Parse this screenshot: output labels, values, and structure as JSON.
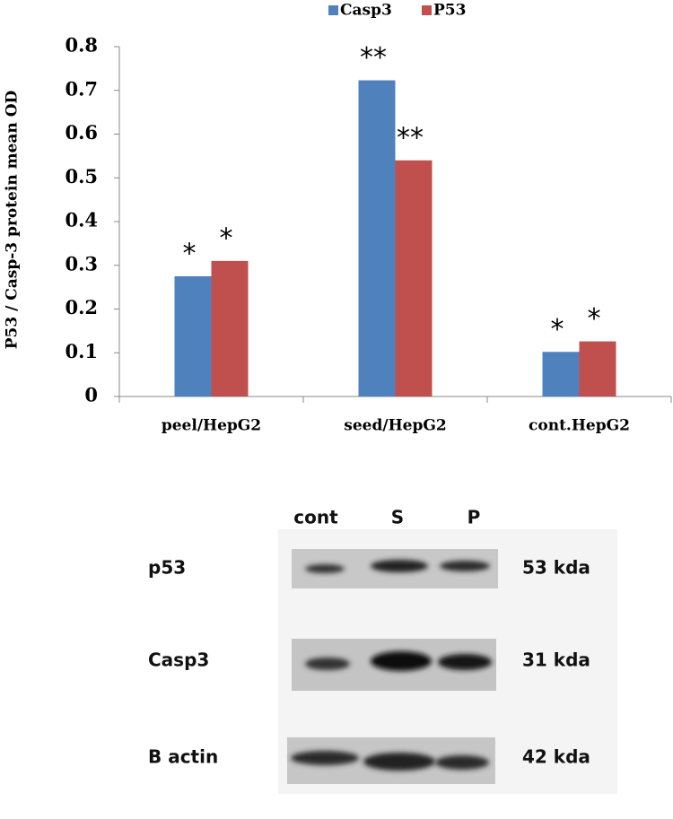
{
  "chart_data": {
    "type": "bar",
    "ylabel": "P53 / Casp-3  protein mean OD",
    "categories": [
      "peel/HepG2",
      "seed/HepG2",
      "cont.HepG2"
    ],
    "series": [
      {
        "name": "Casp3",
        "color": "#4f81bd",
        "values": [
          0.275,
          0.723,
          0.102
        ],
        "significance": [
          "*",
          "**",
          "*"
        ]
      },
      {
        "name": "P53",
        "color": "#c0504d",
        "values": [
          0.31,
          0.54,
          0.126
        ],
        "significance": [
          "*",
          "**",
          "*"
        ]
      }
    ],
    "ylim": [
      0,
      0.8
    ],
    "yticks": [
      0,
      0.1,
      0.2,
      0.3,
      0.4,
      0.5,
      0.6,
      0.7,
      0.8
    ],
    "grid": false,
    "legend": "top"
  },
  "blot": {
    "lanes": [
      "cont",
      "S",
      "P"
    ],
    "rows": [
      {
        "label": "p53",
        "size": "53 kda"
      },
      {
        "label": "Casp3",
        "size": "31 kda"
      },
      {
        "label": "B actin",
        "size": "42 kda"
      }
    ]
  }
}
